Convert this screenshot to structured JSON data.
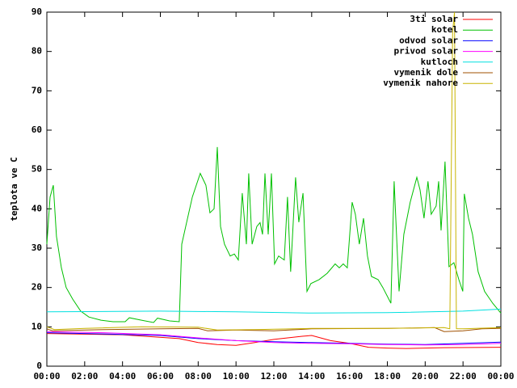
{
  "chart_data": {
    "type": "line",
    "ylabel": "teplota ve C",
    "xlim": [
      0,
      24
    ],
    "ylim": [
      0,
      90
    ],
    "xticks": [
      {
        "value": 0,
        "label": "00:00"
      },
      {
        "value": 2,
        "label": "02:00"
      },
      {
        "value": 4,
        "label": "04:00"
      },
      {
        "value": 6,
        "label": "06:00"
      },
      {
        "value": 8,
        "label": "08:00"
      },
      {
        "value": 10,
        "label": "10:00"
      },
      {
        "value": 12,
        "label": "12:00"
      },
      {
        "value": 14,
        "label": "14:00"
      },
      {
        "value": 16,
        "label": "16:00"
      },
      {
        "value": 18,
        "label": "18:00"
      },
      {
        "value": 20,
        "label": "20:00"
      },
      {
        "value": 22,
        "label": "22:00"
      },
      {
        "value": 24,
        "label": "00:00"
      }
    ],
    "yticks": [
      0,
      10,
      20,
      30,
      40,
      50,
      60,
      70,
      80,
      90
    ],
    "grid": false,
    "legend": "top-right",
    "series": [
      {
        "name": "3ti solar",
        "color": "#ff0000",
        "x": [
          0,
          4,
          7,
          8,
          9,
          10,
          11,
          12,
          13.5,
          14,
          15,
          16,
          17,
          18,
          19,
          21,
          24
        ],
        "values": [
          8.3,
          8,
          7,
          6,
          5.5,
          5.3,
          6,
          6.8,
          7.6,
          7.8,
          6.5,
          5.8,
          4.8,
          4.6,
          4.5,
          4.7,
          4.8
        ]
      },
      {
        "name": "kotel",
        "color": "#00c000",
        "x": [
          0,
          0.17,
          0.34,
          0.51,
          0.77,
          1.02,
          1.37,
          1.79,
          2.22,
          2.86,
          3.5,
          4.14,
          4.36,
          5,
          5.64,
          5.85,
          6.49,
          7,
          7.13,
          7.34,
          7.69,
          8.11,
          8.41,
          8.62,
          8.84,
          9.01,
          9.18,
          9.39,
          9.69,
          9.91,
          10.12,
          10.33,
          10.55,
          10.67,
          10.85,
          11.1,
          11.27,
          11.4,
          11.53,
          11.7,
          11.87,
          12.04,
          12.25,
          12.55,
          12.72,
          12.89,
          13.15,
          13.32,
          13.54,
          13.75,
          13.96,
          14.39,
          14.82,
          15.24,
          15.46,
          15.67,
          15.88,
          16.14,
          16.31,
          16.52,
          16.74,
          16.95,
          17.16,
          17.51,
          17.76,
          18.19,
          18.36,
          18.62,
          18.87,
          19.21,
          19.56,
          19.73,
          19.94,
          20.15,
          20.32,
          20.58,
          20.71,
          20.84,
          21.05,
          21.26,
          21.52,
          21.78,
          21.99,
          22.07,
          22.29,
          22.5,
          22.8,
          23.14,
          23.57,
          24
        ],
        "values": [
          31,
          43,
          46,
          33,
          25,
          20,
          17,
          14,
          12.5,
          11.7,
          11.3,
          11.3,
          12.3,
          11.7,
          11.1,
          12.2,
          11.5,
          11.3,
          31,
          35.5,
          43,
          49,
          46,
          39,
          40,
          55.7,
          35.5,
          31,
          28,
          28.5,
          27,
          44,
          31,
          49,
          31,
          35.5,
          36.5,
          33.5,
          49,
          33.5,
          49,
          26,
          28,
          27,
          43,
          24,
          48,
          36.6,
          44,
          19,
          21,
          22,
          23.6,
          26,
          25,
          26,
          25,
          41.7,
          38.6,
          31,
          37.6,
          28,
          22.8,
          22,
          20,
          16,
          47,
          19,
          33.5,
          41.7,
          48,
          44.8,
          37.6,
          47,
          38.6,
          40.7,
          47,
          34.5,
          52,
          25.3,
          26.3,
          22,
          19,
          43.8,
          37.6,
          33.5,
          24,
          19,
          16,
          13.5
        ]
      },
      {
        "name": "odvod solar",
        "color": "#0000ff",
        "x": [
          0,
          3,
          6,
          8,
          10,
          12,
          14,
          16,
          18,
          20,
          22,
          24
        ],
        "values": [
          8.5,
          8.2,
          7.8,
          7,
          6.5,
          6.2,
          6,
          5.8,
          5.6,
          5.5,
          5.8,
          6.1
        ]
      },
      {
        "name": "privod solar",
        "color": "#ff00ff",
        "x": [
          0,
          3,
          6,
          8,
          10,
          12,
          14,
          16,
          18,
          20,
          22,
          24
        ],
        "values": [
          8.8,
          8.5,
          8,
          7.2,
          6.5,
          6,
          5.8,
          5.7,
          5.5,
          5.4,
          5.5,
          5.8
        ]
      },
      {
        "name": "kutloch",
        "color": "#00e0e0",
        "x": [
          0,
          6,
          10,
          14,
          18,
          22,
          24
        ],
        "values": [
          13.8,
          14,
          13.8,
          13.5,
          13.6,
          14,
          14.5
        ]
      },
      {
        "name": "vymenik dole",
        "color": "#a05000",
        "x": [
          0,
          0.3,
          3,
          6,
          8,
          8.5,
          10,
          12,
          14,
          18,
          20.5,
          21,
          22,
          23,
          24
        ],
        "values": [
          9.5,
          9,
          9.3,
          9.5,
          9.6,
          9,
          9.2,
          9,
          9.5,
          9.6,
          9.8,
          8.8,
          9,
          9.5,
          9.6
        ]
      },
      {
        "name": "vymenik nahore",
        "color": "#c8b400",
        "x": [
          0,
          0.4,
          2,
          5,
          8,
          9,
          11,
          14,
          18,
          21,
          21.3,
          21.45,
          21.55,
          21.65,
          22,
          24
        ],
        "values": [
          10,
          9.3,
          9.6,
          10,
          9.9,
          9.2,
          9.3,
          9.6,
          9.6,
          9.8,
          9.5,
          85,
          90,
          9.5,
          9.5,
          9.8
        ]
      }
    ]
  }
}
